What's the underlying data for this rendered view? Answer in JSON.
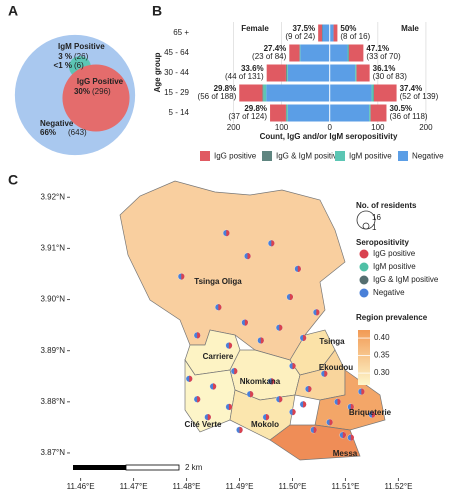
{
  "chart_data": [
    {
      "type": "circles",
      "panel": "A",
      "names": [
        "Negative",
        "IgG Positive",
        "IgM Positive",
        null
      ],
      "values": [
        66,
        30,
        3,
        0.6
      ],
      "value_labels": [
        "66%",
        "30%",
        "3 %",
        "<1 %"
      ],
      "counts": [
        643,
        296,
        26,
        6
      ],
      "count_labels": [
        "(643)",
        "(296)",
        "(26)",
        "(6)"
      ],
      "colors": [
        "#a9c8ef",
        "#e46c6c",
        "#5cc6b4",
        "#5f8580"
      ]
    },
    {
      "type": "pyramid",
      "panel": "B",
      "categories": [
        "65 +",
        "45 - 64",
        "30 - 44",
        "15 - 29",
        "5 - 14"
      ],
      "sides": [
        "Female",
        "Male"
      ],
      "ylabel": "Age group",
      "xlabel": "Count, IgG and/or IgM seropositivity",
      "xlim": [
        -280,
        275
      ],
      "xticks": [
        {
          "value": -200,
          "label": "200"
        },
        {
          "value": -100,
          "label": "100"
        },
        0,
        100,
        200
      ],
      "grid": true,
      "series": [
        {
          "name": "IgG positive",
          "color": "#e05a62",
          "female": [
            8,
            21,
            40,
            48,
            33
          ],
          "male": [
            8,
            30,
            27,
            47,
            33
          ]
        },
        {
          "name": "IgG & IgM positive",
          "color": "#5f8580",
          "female": [
            1,
            1,
            2,
            2,
            1
          ],
          "male": [
            0,
            1,
            1,
            1,
            0
          ]
        },
        {
          "name": "IgM positive",
          "color": "#5cc6b4",
          "female": [
            0,
            1,
            2,
            6,
            3
          ],
          "male": [
            0,
            2,
            2,
            4,
            3
          ]
        },
        {
          "name": "Negative",
          "color": "#5b9ee6",
          "female": [
            15,
            61,
            87,
            132,
            87
          ],
          "male": [
            8,
            37,
            53,
            87,
            82
          ]
        }
      ],
      "female_pct": {
        "values": [
          37.5,
          27.4,
          33.6,
          29.8,
          29.8
        ],
        "value_labels": [
          "37.5%",
          "27.4%",
          "33.6%",
          "29.8%",
          "29.8%"
        ]
      },
      "female_counts": [
        "(9 of 24)",
        "(23 of 84)",
        "(44 of 131)",
        "(56 of 188)",
        "(37 of 124)"
      ],
      "male_pct": {
        "values": [
          50,
          47.1,
          36.1,
          37.4,
          30.5
        ],
        "value_labels": [
          "50%",
          "47.1%",
          "36.1%",
          "37.4%",
          "30.5%"
        ]
      },
      "male_counts": [
        "(8 of 16)",
        "(33 of 70)",
        "(30 of 83)",
        "(52 of 139)",
        "(36 of 118)"
      ]
    },
    {
      "type": "map",
      "panel": "C",
      "xlim": [
        11.458,
        11.532
      ],
      "ylim": [
        3.8651,
        3.9224
      ],
      "xticks": [
        {
          "value": 11.46,
          "label": "11.46°E"
        },
        {
          "value": 11.47,
          "label": "11.47°E"
        },
        {
          "value": 11.48,
          "label": "11.48°E"
        },
        {
          "value": 11.49,
          "label": "11.49°E"
        },
        {
          "value": 11.5,
          "label": "11.50°E"
        },
        {
          "value": 11.51,
          "label": "11.51°E"
        },
        {
          "value": 11.52,
          "label": "11.52°E"
        }
      ],
      "yticks": [
        {
          "value": 3.87,
          "label": "3.87°N"
        },
        {
          "value": 3.88,
          "label": "3.88°N"
        },
        {
          "value": 3.89,
          "label": "3.89°N"
        },
        {
          "value": 3.9,
          "label": "3.90°N"
        },
        {
          "value": 3.91,
          "label": "3.91°N"
        },
        {
          "value": 3.92,
          "label": "3.92°N"
        }
      ],
      "regions": [
        "Tsinga Oliga",
        "Carriere",
        "Nkomkana",
        "Tsinga",
        "Ekoudou",
        "Cité Verte",
        "Mokolo",
        "Briqueterie",
        "Messa"
      ],
      "size_title": "No. of residents",
      "size_labels": [
        16,
        1
      ],
      "legend_title": "Seropositivity",
      "categories": [
        {
          "name": "IgG positive",
          "color": "#d9424f"
        },
        {
          "name": "IgM positive",
          "color": "#4fc0a6"
        },
        {
          "name": "IgG & IgM positive",
          "color": "#546e70"
        },
        {
          "name": "Negative",
          "color": "#4a80d8"
        }
      ],
      "colorbar": {
        "title": "Region prevalence",
        "lim": [
          0.266,
          0.423
        ],
        "colors": [
          "#fdf7cc",
          "#f29a55"
        ],
        "ticks": [
          {
            "value": 0.4,
            "label": "0.40"
          },
          0.35,
          {
            "value": 0.3,
            "label": "0.30"
          }
        ]
      },
      "scale_label": "2 km",
      "points": {
        "x": [
          11.4875,
          11.4915,
          11.496,
          11.501,
          11.4995,
          11.486,
          11.491,
          11.4975,
          11.5045,
          11.482,
          11.488,
          11.494,
          11.502,
          11.479,
          11.4805,
          11.485,
          11.489,
          11.492,
          11.496,
          11.5,
          11.503,
          11.506,
          11.5085,
          11.511,
          11.513,
          11.507,
          11.504,
          11.5095,
          11.5,
          11.495,
          11.488,
          11.484,
          11.49,
          11.515,
          11.511,
          11.4975,
          11.482,
          11.502
        ],
        "y": [
          3.913,
          3.9085,
          3.911,
          3.906,
          3.9005,
          3.8985,
          3.8955,
          3.8945,
          3.8975,
          3.893,
          3.891,
          3.892,
          3.8925,
          3.9045,
          3.8845,
          3.883,
          3.886,
          3.8815,
          3.884,
          3.887,
          3.8825,
          3.8855,
          3.88,
          3.879,
          3.882,
          3.876,
          3.8745,
          3.8735,
          3.878,
          3.877,
          3.879,
          3.877,
          3.8745,
          3.8775,
          3.873,
          3.8805,
          3.8805,
          3.8795
        ]
      }
    }
  ]
}
